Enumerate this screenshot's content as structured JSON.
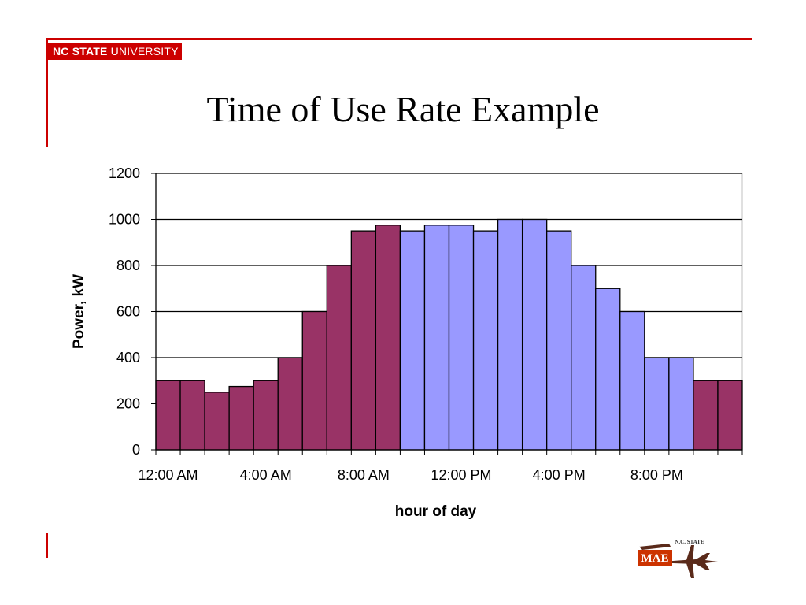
{
  "header": {
    "brand_bold": "NC STATE",
    "brand_thin": "UNIVERSITY"
  },
  "slide": {
    "title": "Time of Use Rate Example"
  },
  "logo": {
    "text": "N.C. STATE",
    "initials": "MAE"
  },
  "colors": {
    "accent_red": "#cc0000",
    "off_peak": "#993366",
    "on_peak": "#9999ff"
  },
  "chart_data": {
    "type": "bar",
    "title": "",
    "xlabel": "hour of day",
    "ylabel": "Power, kW",
    "ylim": [
      0,
      1200
    ],
    "yticks": [
      0,
      200,
      400,
      600,
      800,
      1000,
      1200
    ],
    "x_tick_labels": [
      "12:00 AM",
      "4:00 AM",
      "8:00 AM",
      "12:00 PM",
      "4:00 PM",
      "8:00 PM"
    ],
    "x_tick_label_hours": [
      0,
      4,
      8,
      12,
      16,
      20
    ],
    "hours": [
      0,
      1,
      2,
      3,
      4,
      5,
      6,
      7,
      8,
      9,
      10,
      11,
      12,
      13,
      14,
      15,
      16,
      17,
      18,
      19,
      20,
      21,
      22,
      23
    ],
    "values": [
      300,
      300,
      250,
      275,
      300,
      400,
      600,
      800,
      950,
      975,
      950,
      975,
      975,
      950,
      1000,
      1000,
      950,
      800,
      700,
      600,
      400,
      400,
      300,
      300
    ],
    "period": [
      "off",
      "off",
      "off",
      "off",
      "off",
      "off",
      "off",
      "off",
      "off",
      "off",
      "on",
      "on",
      "on",
      "on",
      "on",
      "on",
      "on",
      "on",
      "on",
      "on",
      "on",
      "on",
      "off",
      "off"
    ],
    "grid": true,
    "legend": "none"
  }
}
